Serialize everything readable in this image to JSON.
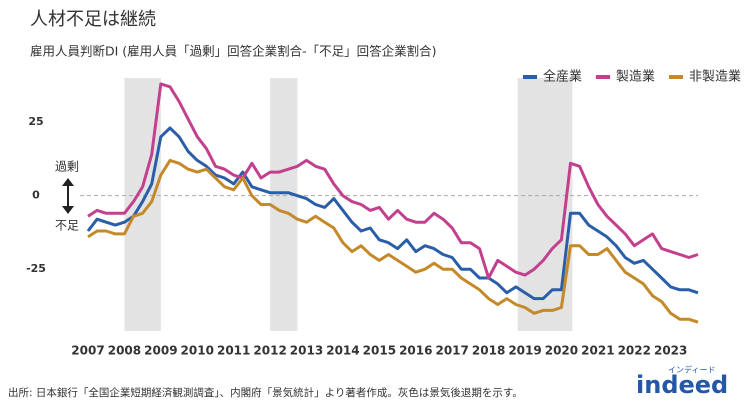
{
  "chart_data": {
    "type": "line",
    "title": "人材不足は継続",
    "subtitle": "雇用人員判断DI (雇用人員「過剰」回答企業割合-「不足」回答企業割合)",
    "annotations": {
      "up": "過剰",
      "down": "不足"
    },
    "source": "出所: 日本銀行「全国企業短期経済観測調査」、内閣府「景気統計」より著者作成。灰色は景気後退期を示す。",
    "logo": {
      "text": "indeed",
      "kana": "インディード"
    },
    "x": [
      2007,
      2007.25,
      2007.5,
      2007.75,
      2008,
      2008.25,
      2008.5,
      2008.75,
      2009,
      2009.25,
      2009.5,
      2009.75,
      2010,
      2010.25,
      2010.5,
      2010.75,
      2011,
      2011.25,
      2011.5,
      2011.75,
      2012,
      2012.25,
      2012.5,
      2012.75,
      2013,
      2013.25,
      2013.5,
      2013.75,
      2014,
      2014.25,
      2014.5,
      2014.75,
      2015,
      2015.25,
      2015.5,
      2015.75,
      2016,
      2016.25,
      2016.5,
      2016.75,
      2017,
      2017.25,
      2017.5,
      2017.75,
      2018,
      2018.25,
      2018.5,
      2018.75,
      2019,
      2019.25,
      2019.5,
      2019.75,
      2020,
      2020.25,
      2020.5,
      2020.75,
      2021,
      2021.25,
      2021.5,
      2021.75,
      2022,
      2022.25,
      2022.5,
      2022.75,
      2023,
      2023.25,
      2023.5,
      2023.75
    ],
    "series": [
      {
        "name": "全産業",
        "color": "#2a5ea8",
        "values": [
          -12,
          -8,
          -9,
          -10,
          -9,
          -7,
          -2,
          4,
          20,
          23,
          20,
          15,
          12,
          10,
          7,
          6,
          4,
          8,
          3,
          2,
          1,
          1,
          1,
          0,
          -1,
          -3,
          -4,
          -1,
          -5,
          -9,
          -12,
          -11,
          -15,
          -16,
          -18,
          -15,
          -19,
          -17,
          -18,
          -20,
          -21,
          -25,
          -25,
          -28,
          -28,
          -30,
          -33,
          -31,
          -33,
          -35,
          -35,
          -32,
          -32,
          -6,
          -6,
          -10,
          -12,
          -14,
          -17,
          -21,
          -23,
          -22,
          -25,
          -28,
          -31,
          -32,
          -32,
          -33
        ]
      },
      {
        "name": "製造業",
        "color": "#c2408e",
        "values": [
          -7,
          -5,
          -6,
          -6,
          -6,
          -2,
          3,
          14,
          38,
          37,
          32,
          26,
          20,
          16,
          10,
          9,
          7,
          6,
          11,
          6,
          8,
          8,
          9,
          10,
          12,
          10,
          9,
          4,
          0,
          -2,
          -3,
          -5,
          -4,
          -8,
          -5,
          -8,
          -9,
          -9,
          -6,
          -8,
          -11,
          -16,
          -16,
          -18,
          -28,
          -22,
          -24,
          -26,
          -27,
          -25,
          -22,
          -18,
          -15,
          11,
          10,
          3,
          -3,
          -7,
          -10,
          -13,
          -17,
          -15,
          -13,
          -18,
          -19,
          -20,
          -21,
          -20
        ]
      },
      {
        "name": "非製造業",
        "color": "#c48a2a",
        "values": [
          -14,
          -12,
          -12,
          -13,
          -13,
          -7,
          -6,
          -2,
          7,
          12,
          11,
          9,
          8,
          9,
          6,
          3,
          2,
          6,
          0,
          -3,
          -3,
          -5,
          -6,
          -8,
          -9,
          -7,
          -9,
          -11,
          -16,
          -19,
          -17,
          -20,
          -22,
          -20,
          -22,
          -24,
          -26,
          -25,
          -23,
          -25,
          -25,
          -28,
          -30,
          -32,
          -35,
          -37,
          -35,
          -37,
          -38,
          -40,
          -39,
          -39,
          -38,
          -17,
          -17,
          -20,
          -20,
          -18,
          -22,
          -26,
          -28,
          -30,
          -34,
          -36,
          -40,
          -42,
          -42,
          -43
        ]
      }
    ],
    "shaded_periods": [
      [
        2008.0,
        2009.0
      ],
      [
        2012.0,
        2012.75
      ],
      [
        2018.8,
        2020.3
      ]
    ],
    "shade_color": "#e3e3e3",
    "xlim": [
      2006.78,
      2023.75
    ],
    "xticks": [
      2007,
      2008,
      2009,
      2010,
      2011,
      2012,
      2013,
      2014,
      2015,
      2016,
      2017,
      2018,
      2019,
      2020,
      2021,
      2022,
      2023
    ],
    "ylim": [
      -46,
      40
    ],
    "yticks": [
      -25,
      0,
      25
    ],
    "zero_line": true,
    "legend": "top-right"
  }
}
